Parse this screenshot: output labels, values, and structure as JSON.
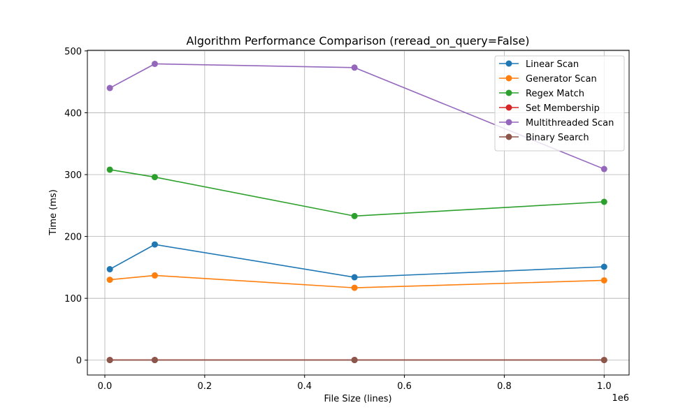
{
  "chart_data": {
    "type": "line",
    "title": "Algorithm Performance Comparison (reread_on_query=False)",
    "xlabel": "File Size (lines)",
    "ylabel": "Time (ms)",
    "x_offset_label": "1e6",
    "x_scale": 1000000,
    "xlim": [
      -0.035,
      1.05
    ],
    "ylim": [
      -24,
      501
    ],
    "x_ticks": [
      0.0,
      0.2,
      0.4,
      0.6,
      0.8,
      1.0
    ],
    "x_tick_labels": [
      "0.0",
      "0.2",
      "0.4",
      "0.6",
      "0.8",
      "1.0"
    ],
    "y_ticks": [
      0,
      100,
      200,
      300,
      400,
      500
    ],
    "y_tick_labels": [
      "0",
      "100",
      "200",
      "300",
      "400",
      "500"
    ],
    "grid": true,
    "legend_position": "top-right",
    "x": [
      10000,
      100000,
      500000,
      1000000
    ],
    "series": [
      {
        "name": "Linear Scan",
        "color": "#1f77b4",
        "values": [
          147,
          187,
          134,
          151
        ]
      },
      {
        "name": "Generator Scan",
        "color": "#ff7f0e",
        "values": [
          130,
          137,
          117,
          129
        ]
      },
      {
        "name": "Regex Match",
        "color": "#2ca02c",
        "values": [
          308,
          296,
          233,
          256
        ]
      },
      {
        "name": "Set Membership",
        "color": "#d62728",
        "values": [
          0.3,
          0.3,
          0.3,
          0.3
        ]
      },
      {
        "name": "Multithreaded Scan",
        "color": "#9467bd",
        "values": [
          440,
          479,
          473,
          309
        ]
      },
      {
        "name": "Binary Search",
        "color": "#8c564b",
        "values": [
          0.2,
          0.2,
          0.2,
          0.2
        ]
      }
    ]
  }
}
